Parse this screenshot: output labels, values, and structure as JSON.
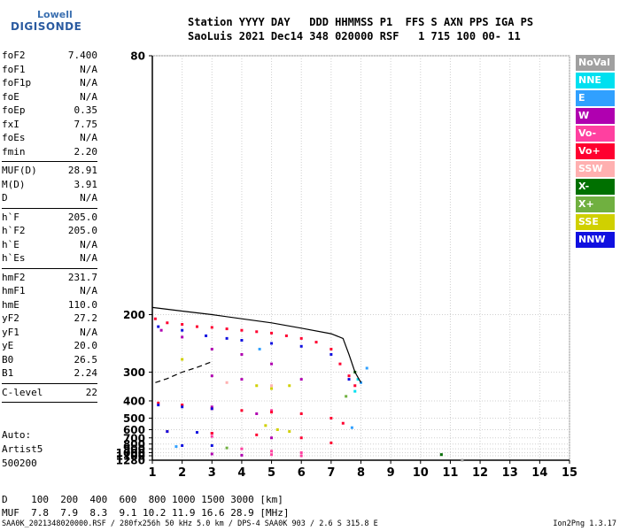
{
  "logo": {
    "line1": "Lowell",
    "line2": "DIGISONDE"
  },
  "header": {
    "line1": "Station YYYY DAY   DDD HHMMSS P1  FFS S AXN PPS IGA PS",
    "line2": "SaoLuis 2021 Dec14 348 020000 RSF   1 715 100 00- 11"
  },
  "params_group1": [
    {
      "k": "foF2",
      "v": "7.400"
    },
    {
      "k": "foF1",
      "v": "N/A"
    },
    {
      "k": "foF1p",
      "v": "N/A"
    },
    {
      "k": "foE",
      "v": "N/A"
    },
    {
      "k": "foEp",
      "v": "0.35"
    },
    {
      "k": "fxI",
      "v": "7.75"
    },
    {
      "k": "foEs",
      "v": "N/A"
    },
    {
      "k": "fmin",
      "v": "2.20"
    }
  ],
  "params_group2": [
    {
      "k": "MUF(D)",
      "v": "28.91"
    },
    {
      "k": "M(D)",
      "v": "3.91"
    },
    {
      "k": "D",
      "v": "N/A"
    }
  ],
  "params_group3": [
    {
      "k": "h`F",
      "v": "205.0"
    },
    {
      "k": "h`F2",
      "v": "205.0"
    },
    {
      "k": "h`E",
      "v": "N/A"
    },
    {
      "k": "h`Es",
      "v": "N/A"
    }
  ],
  "params_group4": [
    {
      "k": "hmF2",
      "v": "231.7"
    },
    {
      "k": "hmF1",
      "v": "N/A"
    },
    {
      "k": "hmE",
      "v": "110.0"
    },
    {
      "k": "yF2",
      "v": "27.2"
    },
    {
      "k": "yF1",
      "v": "N/A"
    },
    {
      "k": "yE",
      "v": "20.0"
    },
    {
      "k": "B0",
      "v": "26.5"
    },
    {
      "k": "B1",
      "v": "2.24"
    }
  ],
  "params_group5": [
    {
      "k": "C-level",
      "v": "22"
    }
  ],
  "auto": {
    "line1": "Auto:",
    "line2": "Artist5",
    "line3": "500200"
  },
  "legend": [
    {
      "label": "NoVal",
      "color": "#a0a0a0"
    },
    {
      "label": "NNE",
      "color": "#00e0f0"
    },
    {
      "label": "E",
      "color": "#30a0ff"
    },
    {
      "label": "W",
      "color": "#b000b0"
    },
    {
      "label": "Vo-",
      "color": "#ff40a0"
    },
    {
      "label": "Vo+",
      "color": "#ff0030"
    },
    {
      "label": "SSW",
      "color": "#ffb0b0"
    },
    {
      "label": "X-",
      "color": "#007000"
    },
    {
      "label": "X+",
      "color": "#70b040"
    },
    {
      "label": "SSE",
      "color": "#d0d000"
    },
    {
      "label": "NNW",
      "color": "#1010e0"
    }
  ],
  "muf_table": {
    "line1": "D    100  200  400  600  800 1000 1500 3000 [km]",
    "line2": "MUF  7.8  7.9  8.3  9.1 10.2 11.9 16.6 28.9 [MHz]"
  },
  "footer": {
    "left": "SAA0K_2021348020000.RSF / 280fx256h 50 kHz 5.0 km / DPS-4 SAA0K 903 / 2.6 S 315.8 E",
    "right": "Ion2Png 1.3.17"
  },
  "chart_data": {
    "type": "scatter",
    "xlim": [
      1,
      15
    ],
    "ylim": [
      80,
      1280
    ],
    "y_scale": "reciprocal",
    "x_ticks": [
      1,
      2,
      3,
      4,
      5,
      6,
      7,
      8,
      9,
      10,
      11,
      12,
      13,
      14,
      15
    ],
    "y_ticks": [
      80,
      200,
      300,
      400,
      500,
      600,
      700,
      800,
      900,
      1000,
      1100,
      1280
    ],
    "series": [
      {
        "name": "NoVal",
        "color": "#a0a0a0",
        "points": [
          [
            10.7,
            1060
          ],
          [
            11.4,
            1280
          ]
        ]
      },
      {
        "name": "NNE",
        "color": "#00e0f0",
        "points": [
          [
            7.8,
            360
          ],
          [
            7.9,
            320
          ]
        ]
      },
      {
        "name": "E",
        "color": "#30a0ff",
        "points": [
          [
            8.0,
            330
          ],
          [
            8.2,
            290
          ],
          [
            1.8,
            850
          ],
          [
            4.6,
            250
          ],
          [
            7.7,
            580
          ]
        ]
      },
      {
        "name": "W",
        "color": "#b000b0",
        "points": [
          [
            1.3,
            220
          ],
          [
            2.0,
            230
          ],
          [
            3.0,
            250
          ],
          [
            4.0,
            260
          ],
          [
            5.0,
            280
          ],
          [
            6.0,
            320
          ],
          [
            3.0,
            310
          ],
          [
            4.0,
            320
          ],
          [
            3.0,
            430
          ],
          [
            4.5,
            470
          ],
          [
            3.0,
            640
          ],
          [
            5.0,
            700
          ],
          [
            3.0,
            1040
          ],
          [
            4.0,
            1080
          ]
        ]
      },
      {
        "name": "Vo-",
        "color": "#ff40a0",
        "points": [
          [
            2.0,
            420
          ],
          [
            5.0,
            450
          ],
          [
            3.0,
            680
          ],
          [
            4.0,
            900
          ],
          [
            5.0,
            960
          ],
          [
            6.0,
            1000
          ],
          [
            5.0,
            1060
          ],
          [
            6.0,
            1100
          ]
        ]
      },
      {
        "name": "Vo+",
        "color": "#ff0030",
        "points": [
          [
            1.1,
            205
          ],
          [
            1.5,
            210
          ],
          [
            2.0,
            212
          ],
          [
            2.5,
            215
          ],
          [
            3.0,
            216
          ],
          [
            3.5,
            218
          ],
          [
            4.0,
            220
          ],
          [
            4.5,
            222
          ],
          [
            5.0,
            224
          ],
          [
            5.5,
            228
          ],
          [
            6.0,
            232
          ],
          [
            6.5,
            238
          ],
          [
            7.0,
            250
          ],
          [
            7.3,
            280
          ],
          [
            7.6,
            310
          ],
          [
            7.8,
            340
          ],
          [
            1.2,
            410
          ],
          [
            2.0,
            420
          ],
          [
            3.0,
            440
          ],
          [
            4.0,
            450
          ],
          [
            5.0,
            460
          ],
          [
            6.0,
            470
          ],
          [
            7.0,
            500
          ],
          [
            7.4,
            540
          ],
          [
            1.5,
            620
          ],
          [
            3.0,
            640
          ],
          [
            4.5,
            660
          ],
          [
            6.0,
            700
          ],
          [
            7.0,
            780
          ]
        ]
      },
      {
        "name": "SSW",
        "color": "#ffb0b0",
        "points": [
          [
            3.5,
            330
          ],
          [
            5.0,
            340
          ]
        ]
      },
      {
        "name": "X-",
        "color": "#007000",
        "points": [
          [
            7.8,
            300
          ],
          [
            10.7,
            1060
          ]
        ]
      },
      {
        "name": "X+",
        "color": "#70b040",
        "points": [
          [
            7.5,
            380
          ],
          [
            3.5,
            880
          ]
        ]
      },
      {
        "name": "SSE",
        "color": "#d0d000",
        "points": [
          [
            4.5,
            340
          ],
          [
            5.0,
            350
          ],
          [
            4.8,
            560
          ],
          [
            5.2,
            600
          ],
          [
            5.6,
            620
          ],
          [
            5.6,
            340
          ],
          [
            2.0,
            270
          ]
        ]
      },
      {
        "name": "NNW",
        "color": "#1010e0",
        "points": [
          [
            1.2,
            215
          ],
          [
            2.0,
            220
          ],
          [
            2.8,
            228
          ],
          [
            3.5,
            232
          ],
          [
            4.0,
            235
          ],
          [
            5.0,
            240
          ],
          [
            6.0,
            245
          ],
          [
            7.0,
            260
          ],
          [
            7.6,
            320
          ],
          [
            1.2,
            420
          ],
          [
            2.0,
            430
          ],
          [
            3.0,
            440
          ],
          [
            1.5,
            620
          ],
          [
            2.5,
            630
          ],
          [
            3.0,
            830
          ],
          [
            2.0,
            830
          ]
        ]
      }
    ],
    "traces": [
      {
        "name": "profile",
        "color": "#000000",
        "points": [
          [
            1.0,
            192
          ],
          [
            2.0,
            196
          ],
          [
            3.0,
            200
          ],
          [
            4.0,
            205
          ],
          [
            5.0,
            210
          ],
          [
            6.0,
            217
          ],
          [
            7.0,
            225
          ],
          [
            7.4,
            232
          ],
          [
            7.6,
            260
          ],
          [
            7.8,
            300
          ],
          [
            8.0,
            330
          ]
        ]
      },
      {
        "name": "dashed",
        "color": "#000000",
        "dashed": true,
        "points": [
          [
            1.1,
            330
          ],
          [
            1.5,
            318
          ],
          [
            2.0,
            300
          ],
          [
            2.5,
            288
          ],
          [
            3.0,
            275
          ]
        ]
      }
    ]
  }
}
